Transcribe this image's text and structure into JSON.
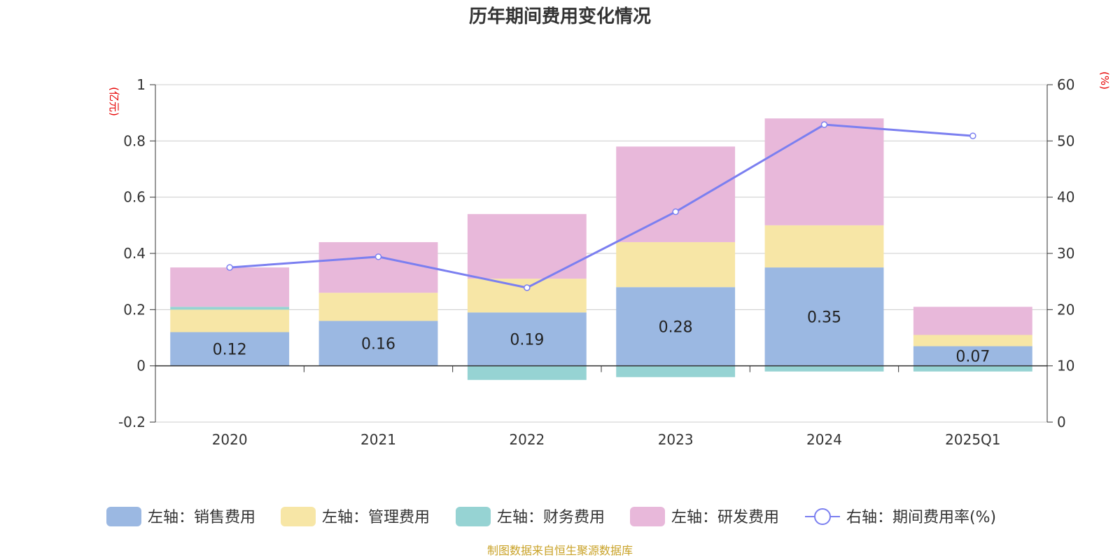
{
  "chart_data": {
    "type": "bar",
    "title": "历年期间费用变化情况",
    "source": "制图数据来自恒生聚源数据库",
    "left_axis": {
      "label": "(亿元)",
      "min": -0.2,
      "max": 1,
      "ticks": [
        -0.2,
        0,
        0.2,
        0.4,
        0.6,
        0.8,
        1
      ]
    },
    "right_axis": {
      "label": "(%)",
      "min": 0,
      "max": 60,
      "ticks": [
        0,
        10,
        20,
        30,
        40,
        50,
        60
      ]
    },
    "categories": [
      "2020",
      "2021",
      "2022",
      "2023",
      "2024",
      "2025Q1"
    ],
    "series": [
      {
        "name": "左轴：销售费用",
        "axis": "left",
        "kind": "bar",
        "color": "#9bb8e2",
        "values": [
          0.12,
          0.16,
          0.19,
          0.28,
          0.35,
          0.07
        ],
        "labels": [
          "0.12",
          "0.16",
          "0.19",
          "0.28",
          "0.35",
          "0.07"
        ]
      },
      {
        "name": "左轴：管理费用",
        "axis": "left",
        "kind": "bar",
        "color": "#f7e6a6",
        "values": [
          0.08,
          0.1,
          0.12,
          0.16,
          0.15,
          0.04
        ]
      },
      {
        "name": "左轴：财务费用",
        "axis": "left",
        "kind": "bar",
        "color": "#96d3d3",
        "values": [
          0.01,
          0.0,
          -0.05,
          -0.04,
          -0.02,
          -0.02
        ]
      },
      {
        "name": "左轴：研发费用",
        "axis": "left",
        "kind": "bar",
        "color": "#e8b8da",
        "values": [
          0.14,
          0.18,
          0.23,
          0.34,
          0.38,
          0.1
        ]
      },
      {
        "name": "右轴：期间费用率(%)",
        "axis": "right",
        "kind": "line",
        "color": "#7b7ff0",
        "values": [
          27.5,
          29.4,
          23.9,
          37.4,
          52.9,
          50.9
        ]
      }
    ]
  }
}
